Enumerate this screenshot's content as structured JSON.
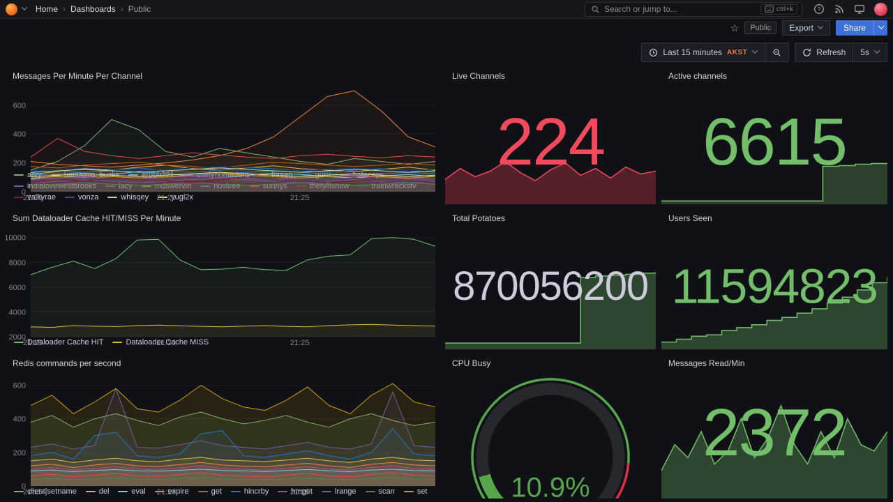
{
  "nav": {
    "breadcrumbs": [
      "Home",
      "Dashboards",
      "Public"
    ],
    "separator": "›",
    "search_placeholder": "Search or jump to...",
    "search_shortcut": "ctrl+k"
  },
  "subheader": {
    "star_icon": "☆",
    "visibility_tag": "Public",
    "export_label": "Export",
    "share_label": "Share"
  },
  "toolbar": {
    "time_range_label": "Last 15 minutes",
    "timezone": "AKST",
    "refresh_label": "Refresh",
    "refresh_interval": "5s"
  },
  "colors": {
    "primary_blue": "#3D71D9",
    "timezone_orange": "#EB7B3F",
    "stat_red": "#F2495C",
    "stat_green": "#73BF69",
    "gauge_green": "#56A64B",
    "threshold_red": "#E02F44"
  },
  "chart_data": [
    {
      "id": "messages",
      "type": "line",
      "title": "Messages Per Minute Per Channel",
      "ylim": [
        0,
        720
      ],
      "yticks": [
        0,
        200,
        400,
        600
      ],
      "xticks": [
        "21:15",
        "21:20",
        "21:25"
      ],
      "xtick_pos": [
        0.005,
        0.335,
        0.665
      ],
      "fill_opacity": 0.05,
      "legend_position": "bottom",
      "grid": true,
      "series": [
        {
          "name": "arky",
          "color": "#7EB26D",
          "values": [
            150,
            210,
            320,
            500,
            430,
            280,
            240,
            300,
            270,
            240,
            210,
            190,
            230,
            210,
            190,
            210
          ]
        },
        {
          "name": "benjamin_bucks",
          "color": "#EAB839",
          "values": [
            120,
            140,
            160,
            150,
            170,
            185,
            160,
            150,
            165,
            180,
            160,
            150,
            140,
            155,
            170,
            150
          ]
        },
        {
          "name": "erobb221",
          "color": "#6ED0E0",
          "values": [
            90,
            110,
            100,
            120,
            140,
            125,
            110,
            100,
            115,
            130,
            120,
            105,
            95,
            110,
            120,
            105
          ]
        },
        {
          "name": "evelynomadera",
          "color": "#EF843C",
          "values": [
            210,
            190,
            180,
            170,
            185,
            200,
            220,
            250,
            300,
            380,
            520,
            660,
            700,
            560,
            380,
            310
          ]
        },
        {
          "name": "forsen",
          "color": "#E24D42",
          "values": [
            240,
            370,
            280,
            250,
            230,
            250,
            270,
            255,
            240,
            230,
            250,
            260,
            245,
            235,
            250,
            240
          ]
        },
        {
          "name": "guru",
          "color": "#1F78C1",
          "values": [
            130,
            145,
            135,
            150,
            165,
            145,
            135,
            150,
            170,
            160,
            145,
            135,
            150,
            160,
            145,
            135
          ]
        },
        {
          "name": "hatecaps",
          "color": "#BA43A9",
          "values": [
            85,
            95,
            105,
            95,
            85,
            100,
            110,
            100,
            90,
            85,
            95,
            105,
            110,
            100,
            90,
            85
          ]
        },
        {
          "name": "indialovewestbrooks",
          "color": "#705DA0",
          "values": [
            60,
            72,
            82,
            72,
            62,
            72,
            85,
            92,
            82,
            72,
            62,
            72,
            82,
            72,
            62,
            72
          ]
        },
        {
          "name": "lacy",
          "color": "#508642",
          "values": [
            40,
            52,
            62,
            52,
            42,
            52,
            62,
            52,
            42,
            52,
            62,
            52,
            42,
            52,
            62,
            52
          ]
        },
        {
          "name": "mdswervin",
          "color": "#CCA300",
          "values": [
            95,
            105,
            115,
            105,
            95,
            105,
            115,
            125,
            115,
            105,
            95,
            105,
            115,
            105,
            95,
            105
          ]
        },
        {
          "name": "nosliree",
          "color": "#447EBC",
          "values": [
            115,
            125,
            135,
            145,
            135,
            125,
            115,
            125,
            135,
            145,
            135,
            125,
            115,
            125,
            135,
            125
          ]
        },
        {
          "name": "sunnys",
          "color": "#C15C17",
          "values": [
            175,
            165,
            185,
            195,
            205,
            185,
            175,
            165,
            185,
            205,
            195,
            185,
            175,
            185,
            195,
            185
          ]
        },
        {
          "name": "thetylilshow",
          "color": "#890F02",
          "values": [
            65,
            85,
            75,
            95,
            85,
            75,
            65,
            85,
            95,
            85,
            75,
            65,
            75,
            85,
            75,
            65
          ]
        },
        {
          "name": "trainwreckstv",
          "color": "#0A437C",
          "values": [
            145,
            155,
            165,
            155,
            145,
            155,
            165,
            175,
            165,
            155,
            145,
            155,
            165,
            155,
            145,
            155
          ]
        },
        {
          "name": "valkyrae",
          "color": "#6D1F62",
          "values": [
            55,
            65,
            75,
            65,
            55,
            65,
            75,
            65,
            55,
            65,
            75,
            65,
            55,
            65,
            75,
            65
          ]
        },
        {
          "name": "vonza",
          "color": "#584477",
          "values": [
            75,
            85,
            95,
            85,
            75,
            85,
            95,
            105,
            95,
            85,
            75,
            85,
            95,
            85,
            75,
            85
          ]
        },
        {
          "name": "whisqey",
          "color": "#B7DBAB",
          "values": [
            135,
            145,
            155,
            145,
            135,
            145,
            155,
            165,
            155,
            145,
            135,
            145,
            155,
            145,
            135,
            145
          ]
        },
        {
          "name": "yugl2x",
          "color": "#F4D598",
          "values": [
            105,
            115,
            125,
            115,
            105,
            115,
            125,
            135,
            125,
            115,
            105,
            115,
            125,
            115,
            105,
            115
          ]
        }
      ]
    },
    {
      "id": "dataloader",
      "type": "line",
      "title": "Sum Dataloader Cache HIT/MISS Per Minute",
      "ylim": [
        2000,
        10600
      ],
      "yticks": [
        2000,
        4000,
        6000,
        8000,
        10000
      ],
      "xticks": [
        "21:15",
        "21:20",
        "21:25"
      ],
      "xtick_pos": [
        0.005,
        0.335,
        0.665
      ],
      "fill_opacity": 0.07,
      "legend_position": "bottom",
      "grid": true,
      "series": [
        {
          "name": "Dataloader Cache HIT",
          "color": "#73BF69",
          "values": [
            7000,
            7600,
            8100,
            7500,
            8300,
            9800,
            9850,
            8200,
            7400,
            7450,
            7600,
            7400,
            7350,
            8200,
            8500,
            8600,
            9900,
            10000,
            9850,
            9300
          ]
        },
        {
          "name": "Dataloader Cache MISS",
          "color": "#EAB839",
          "values": [
            2800,
            2760,
            2900,
            2850,
            2820,
            2900,
            2940,
            2880,
            2840,
            2800,
            2860,
            2900,
            2840,
            2800,
            2900,
            2960,
            3000,
            2940,
            2900,
            2860
          ]
        }
      ]
    },
    {
      "id": "redis",
      "type": "line",
      "title": "Redis commands per second",
      "ylim": [
        0,
        660
      ],
      "yticks": [
        0,
        200,
        400,
        600
      ],
      "xticks": [
        "21:15",
        "21:20",
        "21:25"
      ],
      "xtick_pos": [
        0.005,
        0.335,
        0.665
      ],
      "fill_opacity": 0.12,
      "legend_position": "bottom",
      "grid": true,
      "series": [
        {
          "name": "client|setname",
          "color": "#7EB26D",
          "values": [
            380,
            420,
            350,
            400,
            430,
            390,
            360,
            410,
            440,
            400,
            370,
            390,
            420,
            380,
            350,
            400,
            430,
            390,
            360,
            380
          ]
        },
        {
          "name": "del",
          "color": "#EAB839",
          "values": [
            150,
            160,
            140,
            155,
            165,
            150,
            145,
            160,
            170,
            155,
            150,
            145,
            155,
            165,
            150,
            140,
            160,
            170,
            155,
            150
          ]
        },
        {
          "name": "eval",
          "color": "#6ED0E0",
          "values": [
            90,
            95,
            85,
            92,
            98,
            90,
            88,
            94,
            100,
            92,
            90,
            86,
            92,
            98,
            90,
            85,
            95,
            100,
            92,
            90
          ]
        },
        {
          "name": "expire",
          "color": "#EF843C",
          "values": [
            120,
            130,
            110,
            125,
            135,
            120,
            115,
            128,
            140,
            125,
            118,
            115,
            125,
            135,
            120,
            110,
            130,
            140,
            125,
            120
          ]
        },
        {
          "name": "get",
          "color": "#E24D42",
          "values": [
            60,
            70,
            55,
            65,
            75,
            60,
            58,
            68,
            80,
            65,
            60,
            55,
            65,
            75,
            60,
            55,
            70,
            80,
            65,
            60
          ]
        },
        {
          "name": "hincrby",
          "color": "#1F78C1",
          "values": [
            180,
            200,
            160,
            300,
            320,
            180,
            170,
            190,
            310,
            330,
            180,
            170,
            190,
            210,
            180,
            160,
            200,
            340,
            190,
            180
          ]
        },
        {
          "name": "hmget",
          "color": "#BA43A9",
          "values": [
            100,
            110,
            95,
            105,
            115,
            100,
            98,
            108,
            120,
            105,
            100,
            95,
            105,
            115,
            100,
            95,
            110,
            120,
            105,
            100
          ]
        },
        {
          "name": "lrange",
          "color": "#705DA0",
          "values": [
            230,
            250,
            220,
            240,
            580,
            230,
            225,
            245,
            270,
            240,
            230,
            220,
            240,
            260,
            230,
            220,
            250,
            560,
            240,
            230
          ]
        },
        {
          "name": "scan",
          "color": "#508642",
          "values": [
            40,
            45,
            38,
            42,
            48,
            40,
            39,
            44,
            50,
            42,
            40,
            38,
            42,
            48,
            40,
            38,
            45,
            50,
            42,
            40
          ]
        },
        {
          "name": "set",
          "color": "#CCA300",
          "values": [
            480,
            540,
            430,
            500,
            580,
            460,
            440,
            510,
            600,
            520,
            470,
            450,
            510,
            590,
            480,
            430,
            540,
            610,
            500,
            470
          ]
        }
      ]
    },
    {
      "id": "live-channels",
      "type": "stat",
      "title": "Live Channels",
      "value": "224",
      "color": "#F2495C",
      "spark": {
        "color": "#F2495C",
        "fill_opacity": 0.3,
        "frac": 0.35,
        "floor": 0.55,
        "step": false,
        "values": [
          212,
          228,
          216,
          224,
          238,
          222,
          210,
          226,
          236,
          218,
          228,
          214,
          230,
          220,
          224
        ]
      }
    },
    {
      "id": "active-channels",
      "type": "stat",
      "title": "Active channels",
      "value": "6615",
      "color": "#73BF69",
      "spark": {
        "color": "#73BF69",
        "fill_opacity": 0.28,
        "frac": 0.34,
        "floor": 0.08,
        "step": true,
        "values": [
          1,
          1,
          1,
          1,
          1,
          1,
          1,
          1,
          1,
          1,
          6,
          6.1,
          6.3,
          6.4,
          6.5
        ]
      }
    },
    {
      "id": "total-potatoes",
      "type": "stat",
      "title": "Total Potatoes",
      "value": "870056200",
      "color": "#CCCCDC",
      "spark": {
        "color": "#73BF69",
        "fill_opacity": 0.3,
        "frac": 0.62,
        "floor": 0.08,
        "step": true,
        "values": [
          1,
          1,
          1,
          1,
          1,
          1,
          1,
          1,
          1,
          9.3,
          9.5,
          9.6,
          9.7,
          9.85,
          10
        ]
      }
    },
    {
      "id": "users-seen",
      "type": "stat",
      "title": "Users Seen",
      "value": "11594823",
      "color": "#73BF69",
      "spark": {
        "color": "#73BF69",
        "fill_opacity": 0.3,
        "frac": 0.58,
        "floor": 0.1,
        "step": true,
        "values": [
          1,
          1.4,
          1.8,
          2.0,
          2.6,
          3.0,
          3.4,
          4.0,
          4.4,
          5.0,
          5.6,
          6.4,
          7.2,
          8.2,
          9.2,
          10
        ]
      }
    },
    {
      "id": "cpu-busy",
      "type": "gauge",
      "title": "CPU Busy",
      "value": 10.9,
      "display": "10.9%",
      "min": 0,
      "max": 100,
      "threshold": 85,
      "color": "#56A64B",
      "threshold_color": "#E02F44"
    },
    {
      "id": "messages-read",
      "type": "stat",
      "title": "Messages Read/Min",
      "value": "2372",
      "color": "#73BF69",
      "spark": {
        "color": "#73BF69",
        "fill_opacity": 0.3,
        "frac": 0.72,
        "floor": 0.3,
        "step": false,
        "values": [
          5,
          7,
          6,
          8,
          5.5,
          6.5,
          9,
          6,
          7.5,
          10,
          7,
          5.5,
          8,
          6,
          9,
          7,
          6.5,
          8
        ]
      }
    }
  ]
}
